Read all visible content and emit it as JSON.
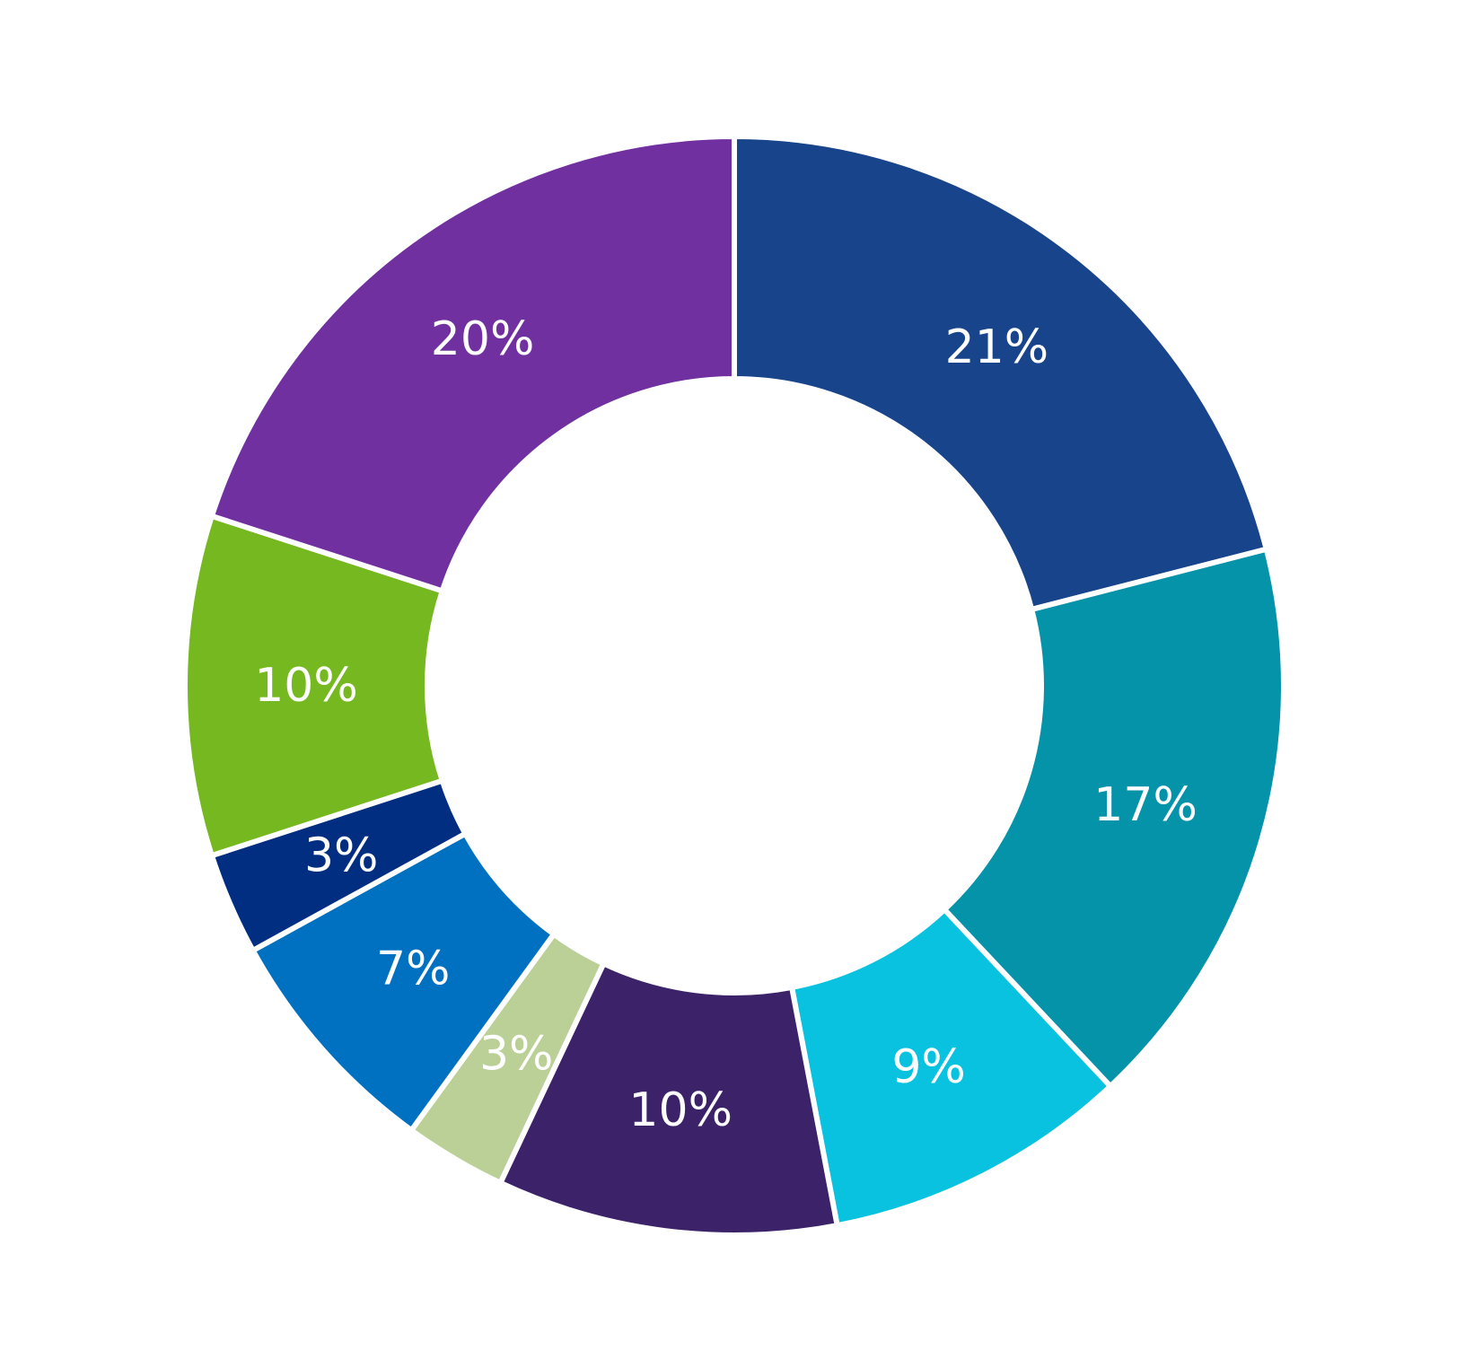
{
  "chart_data": {
    "type": "pie",
    "variant": "donut",
    "title": "",
    "legend": "none",
    "slices": [
      {
        "label": "21%",
        "value": 21,
        "color": "#17448a"
      },
      {
        "label": "17%",
        "value": 17,
        "color": "#0493a8"
      },
      {
        "label": "9%",
        "value": 9,
        "color": "#08c2e0"
      },
      {
        "label": "10%",
        "value": 10,
        "color": "#3c2369"
      },
      {
        "label": "3%",
        "value": 3,
        "color": "#bad097"
      },
      {
        "label": "7%",
        "value": 7,
        "color": "#0070c0"
      },
      {
        "label": "3%",
        "value": 3,
        "color": "#022e82"
      },
      {
        "label": "10%",
        "value": 10,
        "color": "#76b81f"
      },
      {
        "label": "20%",
        "value": 20,
        "color": "#7030a0"
      }
    ]
  }
}
